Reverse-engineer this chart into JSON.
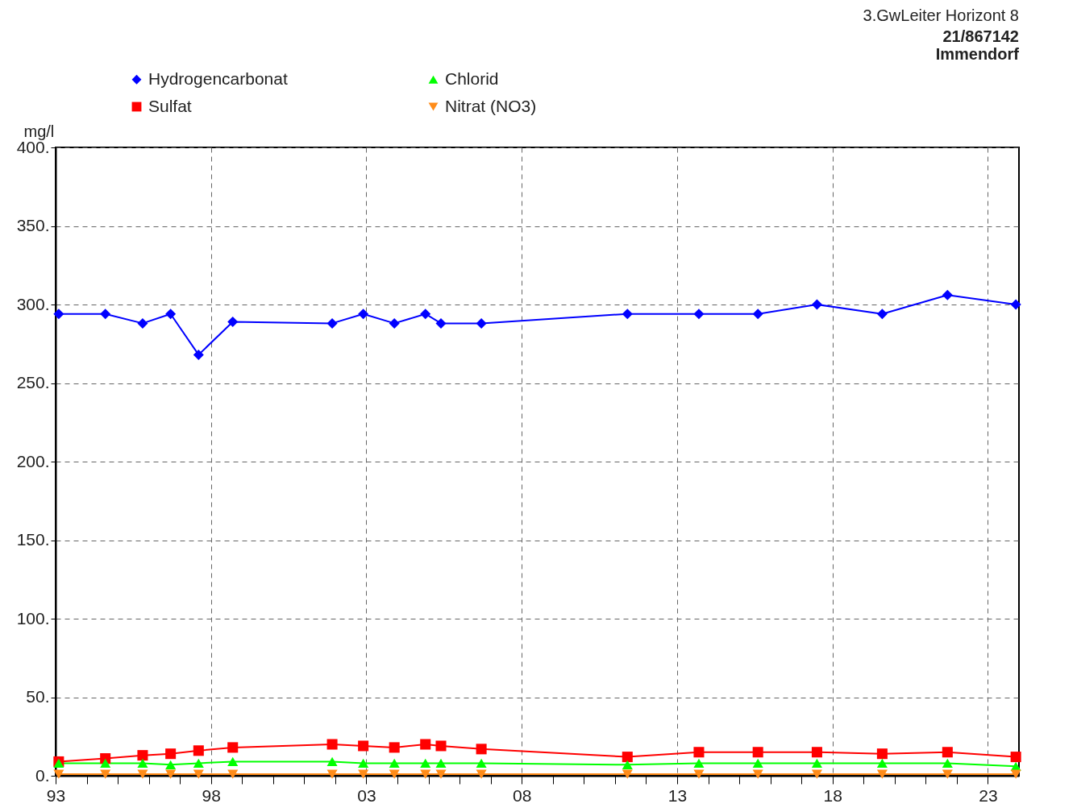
{
  "chart_data": {
    "type": "line",
    "title": "3.GwLeiter Horizont 8",
    "annotations": [
      "21/867142",
      "Immendorf"
    ],
    "ylabel": "mg/l",
    "x": [
      1993.1,
      1994.6,
      1995.8,
      1996.7,
      1997.6,
      1998.7,
      2001.9,
      2002.9,
      2003.9,
      2004.9,
      2005.4,
      2006.7,
      2011.4,
      2013.7,
      2015.6,
      2017.5,
      2019.6,
      2021.7,
      2023.9
    ],
    "series": [
      {
        "name": "Hydrogencarbonat",
        "color": "#0000ff",
        "marker": "diamond",
        "values": [
          294,
          294,
          288,
          294,
          268,
          289,
          288,
          294,
          288,
          294,
          288,
          288,
          294,
          294,
          294,
          300,
          294,
          306,
          300
        ]
      },
      {
        "name": "Sulfat",
        "color": "#ff0000",
        "marker": "square",
        "values": [
          9,
          11,
          13,
          14,
          16,
          18,
          20,
          19,
          18,
          20,
          19,
          17,
          12,
          15,
          15,
          15,
          14,
          15,
          12
        ]
      },
      {
        "name": "Chlorid",
        "color": "#00ff00",
        "marker": "triangle",
        "values": [
          8,
          8,
          8,
          7,
          8,
          9,
          9,
          8,
          8,
          8,
          8,
          8,
          7,
          8,
          8,
          8,
          8,
          8,
          6
        ]
      },
      {
        "name": "Nitrat (NO3)",
        "color": "#ff8c1a",
        "marker": "triangle-down",
        "values": [
          1,
          1,
          1,
          1,
          1,
          1,
          1,
          1,
          1,
          1,
          1,
          1,
          1,
          1,
          1,
          1,
          1,
          1,
          1
        ]
      }
    ],
    "xlim": [
      1993,
      2024
    ],
    "xticks": [
      {
        "value": 1993,
        "label": "93"
      },
      {
        "value": 1994,
        "label": null
      },
      {
        "value": 1995,
        "label": null
      },
      {
        "value": 1996,
        "label": null
      },
      {
        "value": 1997,
        "label": null
      },
      {
        "value": 1998,
        "label": "98"
      },
      {
        "value": 1999,
        "label": null
      },
      {
        "value": 2000,
        "label": null
      },
      {
        "value": 2001,
        "label": null
      },
      {
        "value": 2002,
        "label": null
      },
      {
        "value": 2003,
        "label": "03"
      },
      {
        "value": 2004,
        "label": null
      },
      {
        "value": 2005,
        "label": null
      },
      {
        "value": 2006,
        "label": null
      },
      {
        "value": 2007,
        "label": null
      },
      {
        "value": 2008,
        "label": "08"
      },
      {
        "value": 2009,
        "label": null
      },
      {
        "value": 2010,
        "label": null
      },
      {
        "value": 2011,
        "label": null
      },
      {
        "value": 2012,
        "label": null
      },
      {
        "value": 2013,
        "label": "13"
      },
      {
        "value": 2014,
        "label": null
      },
      {
        "value": 2015,
        "label": null
      },
      {
        "value": 2016,
        "label": null
      },
      {
        "value": 2017,
        "label": null
      },
      {
        "value": 2018,
        "label": "18"
      },
      {
        "value": 2019,
        "label": null
      },
      {
        "value": 2020,
        "label": null
      },
      {
        "value": 2021,
        "label": null
      },
      {
        "value": 2022,
        "label": null
      },
      {
        "value": 2023,
        "label": "23"
      }
    ],
    "ylim": [
      0,
      400
    ],
    "yticks": [
      {
        "value": 0,
        "label": "0."
      },
      {
        "value": 50,
        "label": "50."
      },
      {
        "value": 100,
        "label": "100."
      },
      {
        "value": 150,
        "label": "150."
      },
      {
        "value": 200,
        "label": "200."
      },
      {
        "value": 250,
        "label": "250."
      },
      {
        "value": 300,
        "label": "300."
      },
      {
        "value": 350,
        "label": "350."
      },
      {
        "value": 400,
        "label": "400."
      }
    ],
    "grid": true,
    "legend": "top left",
    "line_style": "solid"
  }
}
